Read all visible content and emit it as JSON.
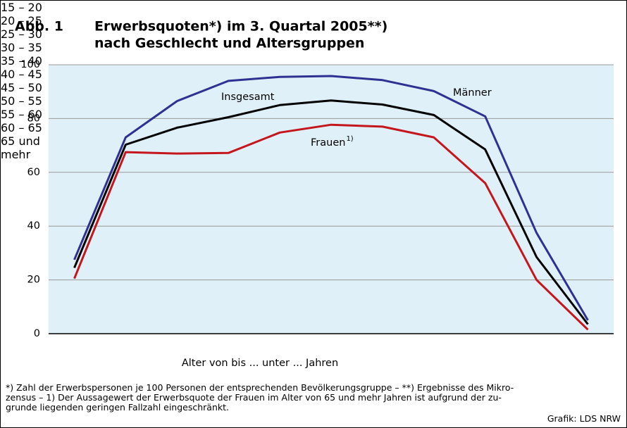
{
  "chart_data": {
    "type": "line",
    "figure_label": "Abb. 1",
    "title": [
      "Erwerbsquoten*) im 3. Quartal 2005**)",
      "nach Geschlecht und Altersgruppen"
    ],
    "x_label": "Alter von bis ... unter ... Jahren",
    "categories": [
      "15 – 20",
      "20 – 25",
      "25 – 30",
      "30 – 35",
      "35 – 40",
      "40 – 45",
      "45 – 50",
      "50 – 55",
      "55 – 60",
      "60 – 65",
      "65 und mehr"
    ],
    "series": [
      {
        "name": "Männer",
        "color": "#2e3192",
        "values": [
          27.5,
          73,
          86.5,
          94,
          95.5,
          95.8,
          94.3,
          90.2,
          80.8,
          37.5,
          5
        ]
      },
      {
        "name": "Insgesamt",
        "color": "#000000",
        "values": [
          24.5,
          70.3,
          76.6,
          80.5,
          85,
          86.7,
          85.2,
          81.3,
          68.5,
          28.5,
          3.5
        ]
      },
      {
        "name": "Frauen",
        "note_marker": "1)",
        "color": "#c4161c",
        "values": [
          20.5,
          67.5,
          67,
          67.2,
          74.8,
          77.7,
          77,
          73,
          56,
          20,
          1.5
        ]
      }
    ],
    "ylim": [
      0,
      100
    ],
    "yticks": [
      0,
      20,
      40,
      60,
      80,
      100
    ],
    "grid": true,
    "footnote": [
      "*) Zahl der Erwerbspersonen je 100 Personen der entsprechenden Bevölkerungsgruppe – **) Ergebnisse des Mikro-",
      "zensus – 1) Der Aussagewert der Erwerbsquote der Frauen im Alter von 65 und mehr Jahren ist aufgrund der zu-",
      "grunde liegenden geringen Fallzahl eingeschränkt."
    ],
    "source": "Grafik: LDS NRW"
  }
}
